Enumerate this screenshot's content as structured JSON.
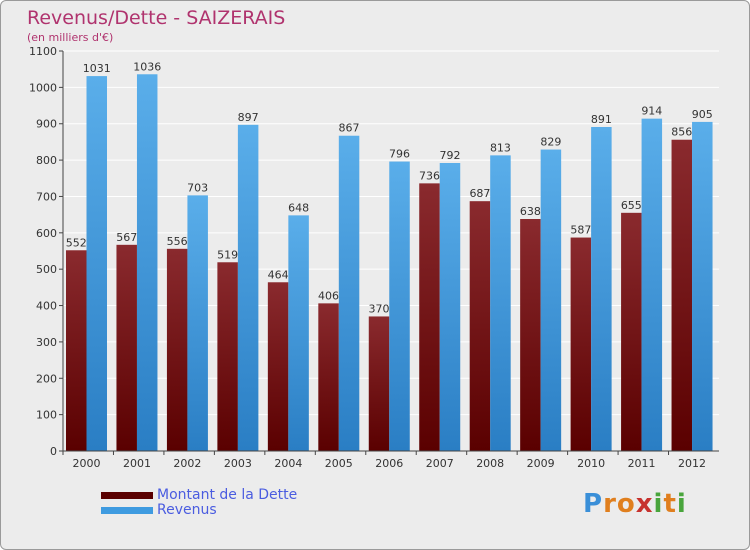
{
  "title": "Revenus/Dette - SAIZERAIS",
  "subtitle": "(en milliers d'€)",
  "chart_data": {
    "type": "bar",
    "categories": [
      "2000",
      "2001",
      "2002",
      "2003",
      "2004",
      "2005",
      "2006",
      "2007",
      "2008",
      "2009",
      "2010",
      "2011",
      "2012"
    ],
    "series": [
      {
        "name": "Montant de la Dette",
        "values": [
          552,
          567,
          556,
          519,
          464,
          406,
          370,
          736,
          687,
          638,
          587,
          655,
          856
        ],
        "color": "#7a1418"
      },
      {
        "name": "Revenus",
        "values": [
          1031,
          1036,
          703,
          897,
          648,
          867,
          796,
          792,
          813,
          829,
          891,
          914,
          905
        ],
        "color": "#3f9be0"
      }
    ],
    "ylim": [
      0,
      1100
    ],
    "yticks": [
      0,
      100,
      200,
      300,
      400,
      500,
      600,
      700,
      800,
      900,
      1000,
      1100
    ],
    "grid": true,
    "legend": "bottom-left"
  },
  "logo": {
    "letters": [
      "P",
      "r",
      "o",
      "x",
      "i",
      "t",
      "i"
    ],
    "colors": [
      "#3a8fd8",
      "#e07f1e",
      "#e07f1e",
      "#c7322e",
      "#49a53c",
      "#e07f1e",
      "#49a53c"
    ]
  }
}
